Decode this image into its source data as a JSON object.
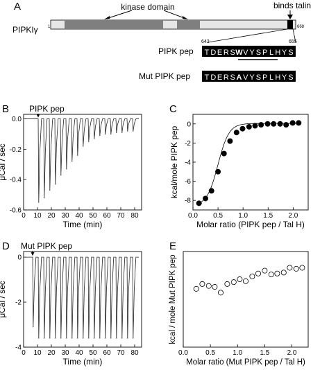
{
  "panel_letters": {
    "A": "A",
    "B": "B",
    "C": "C",
    "D": "D",
    "E": "E"
  },
  "panel_a": {
    "protein_label": "PIPKIγ",
    "start_residue": "1",
    "end_residue": "668",
    "kinase_domain_label": "kinase domain",
    "talin_label": "binds talin",
    "pep_start": "642",
    "pep_end": "655",
    "pipk_pep_label": "PIPK pep",
    "mut_pipk_pep_label": "Mut PIPK pep",
    "wt_sequence": [
      "T",
      "D",
      "E",
      "R",
      "S",
      "W",
      "V",
      "Y",
      "S",
      "P",
      "L",
      "H",
      "Y",
      "S"
    ],
    "mut_sequence": [
      "T",
      "D",
      "E",
      "R",
      "S",
      "A",
      "V",
      "Y",
      "S",
      "P",
      "L",
      "H",
      "Y",
      "S"
    ],
    "highlighted_residue_index": 5,
    "colors": {
      "domain": "#7f7f7f",
      "bar": "#e6e6e6",
      "talin": "#000000",
      "seq_bg": "#000000",
      "seq_fg": "#ffffff"
    }
  },
  "chart_data": [
    {
      "panel": "B",
      "type": "line",
      "annotation": "PIPK pep",
      "xlabel": "Time (min)",
      "ylabel": "μCal / sec",
      "xlim": [
        0,
        85
      ],
      "ylim": [
        -0.6,
        0.03
      ],
      "xticks": [
        0,
        10,
        20,
        30,
        40,
        50,
        60,
        70,
        80
      ],
      "yticks": [
        0,
        -0.2,
        -0.4,
        -0.6
      ],
      "ytick_labels": [
        "0.0",
        "-0.2",
        "-0.4",
        "-0.6"
      ],
      "baseline": 0.0,
      "injection_times": [
        10.5,
        14.5,
        18.5,
        22.5,
        26.5,
        30.5,
        34.5,
        38.5,
        42.5,
        46.5,
        50.5,
        54.5,
        58.5,
        62.5,
        66.5,
        70.5,
        74.5,
        78.5
      ],
      "peak_values": [
        -0.55,
        -0.52,
        -0.47,
        -0.43,
        -0.37,
        -0.33,
        -0.28,
        -0.24,
        -0.18,
        -0.15,
        -0.13,
        -0.11,
        -0.1,
        -0.1,
        -0.09,
        -0.09,
        -0.08,
        -0.08
      ]
    },
    {
      "panel": "C",
      "type": "scatter",
      "marker": "filled-circle",
      "fit_line": true,
      "xlabel": "Molar ratio (PIPK pep / Tal H)",
      "ylabel": "kcal/mole PIPK pep",
      "xlim": [
        0,
        2.3
      ],
      "ylim": [
        -9,
        1
      ],
      "xticks": [
        0,
        0.5,
        1.0,
        1.5,
        2.0
      ],
      "xtick_labels": [
        "0.0",
        "0.5",
        "1.0",
        "1.5",
        "2.0"
      ],
      "yticks": [
        0,
        -2,
        -4,
        -6,
        -8
      ],
      "x": [
        0.12,
        0.25,
        0.37,
        0.5,
        0.62,
        0.74,
        0.87,
        0.99,
        1.12,
        1.24,
        1.36,
        1.49,
        1.61,
        1.74,
        1.86,
        1.99,
        2.11
      ],
      "y": [
        -8.3,
        -7.8,
        -7.0,
        -5.0,
        -3.1,
        -1.8,
        -0.9,
        -0.5,
        -0.3,
        -0.2,
        -0.1,
        0.0,
        0.0,
        0.0,
        -0.1,
        0.1,
        0.1
      ]
    },
    {
      "panel": "D",
      "type": "line",
      "annotation": "Mut PIPK pep",
      "xlabel": "Time (min)",
      "ylabel": "μCal / sec",
      "xlim": [
        0,
        85
      ],
      "ylim": [
        -4,
        0.25
      ],
      "xticks": [
        0,
        10,
        20,
        30,
        40,
        50,
        60,
        70,
        80
      ],
      "yticks": [
        0,
        -2,
        -4
      ],
      "baseline": 0.0,
      "injection_times": [
        6.5,
        10.5,
        14.5,
        18.5,
        22.5,
        26.5,
        30.5,
        34.5,
        38.5,
        42.5,
        46.5,
        50.5,
        54.5,
        58.5,
        62.5,
        66.5,
        70.5,
        74.5,
        78.5
      ],
      "peak_values": [
        -3.1,
        -3.6,
        -3.6,
        -3.6,
        -3.6,
        -3.6,
        -3.6,
        -3.6,
        -3.6,
        -3.6,
        -3.6,
        -3.6,
        -3.6,
        -3.6,
        -3.6,
        -3.6,
        -3.6,
        -3.6,
        -3.6
      ]
    },
    {
      "panel": "E",
      "type": "scatter",
      "marker": "open-circle",
      "fit_line": false,
      "xlabel": "Molar ratio (Mut PIPK pep / Tal H)",
      "ylabel": "kcal / mole Mut PIPK pep",
      "xlim": [
        0,
        2.3
      ],
      "ylim": [
        -8.5,
        1.5
      ],
      "xticks": [
        0,
        0.5,
        1.0,
        1.5,
        2.0
      ],
      "xtick_labels": [
        "0.0",
        "0.5",
        "1.0",
        "1.5",
        "2.0"
      ],
      "yticks": [],
      "x": [
        0.24,
        0.35,
        0.47,
        0.58,
        0.69,
        0.81,
        0.93,
        1.04,
        1.15,
        1.27,
        1.38,
        1.5,
        1.62,
        1.73,
        1.85,
        1.96,
        2.08,
        2.19
      ],
      "y": [
        -2.4,
        -1.9,
        -2.1,
        -2.2,
        -2.8,
        -1.9,
        -1.7,
        -1.4,
        -1.6,
        -1.1,
        -0.8,
        -0.5,
        -0.9,
        -0.8,
        -0.7,
        -0.2,
        -0.3,
        -0.2
      ]
    }
  ]
}
